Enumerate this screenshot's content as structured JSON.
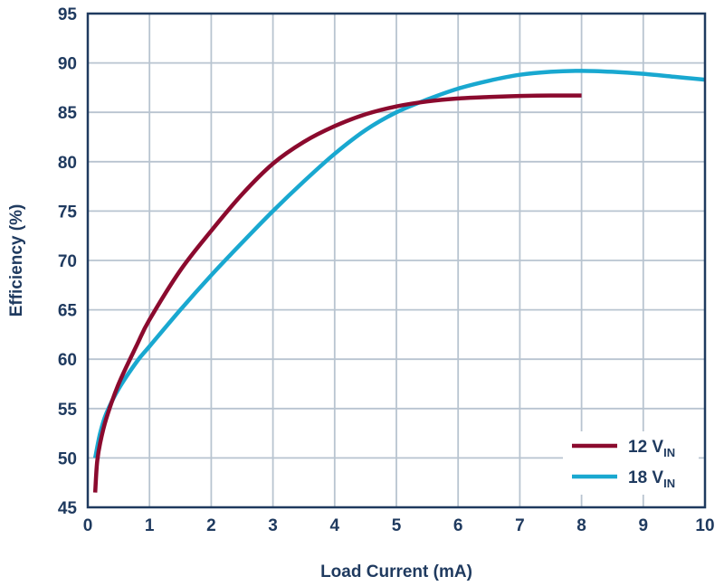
{
  "chart_data": {
    "type": "line",
    "xlabel": "Load Current (mA)",
    "ylabel": "Efficiency (%)",
    "xlim": [
      0,
      10
    ],
    "ylim": [
      45,
      95
    ],
    "x_ticks": [
      0,
      1,
      2,
      3,
      4,
      5,
      6,
      7,
      8,
      9,
      10
    ],
    "y_ticks": [
      45,
      50,
      55,
      60,
      65,
      70,
      75,
      80,
      85,
      90,
      95
    ],
    "grid": true,
    "legend_position": "bottom-right",
    "series": [
      {
        "name": "12 V",
        "name_subscript": "IN",
        "color": "#8b0a2e",
        "x": [
          0.12,
          0.15,
          0.2,
          0.3,
          0.5,
          0.8,
          1.0,
          1.5,
          2.0,
          2.5,
          3.0,
          3.5,
          4.0,
          4.5,
          5.0,
          5.5,
          6.0,
          6.5,
          7.0,
          7.5,
          8.0
        ],
        "y": [
          46.5,
          49.5,
          51.5,
          54.0,
          57.5,
          61.5,
          64.0,
          69.0,
          73.0,
          76.7,
          79.8,
          82.0,
          83.6,
          84.8,
          85.6,
          86.1,
          86.4,
          86.55,
          86.65,
          86.7,
          86.7
        ]
      },
      {
        "name": "18 V",
        "name_subscript": "IN",
        "color": "#19a8d0",
        "x": [
          0.12,
          0.2,
          0.3,
          0.5,
          0.8,
          1.0,
          1.5,
          2.0,
          2.5,
          3.0,
          3.5,
          4.0,
          4.5,
          5.0,
          5.5,
          6.0,
          6.5,
          7.0,
          7.5,
          8.0,
          8.5,
          9.0,
          9.5,
          10.0
        ],
        "y": [
          50.0,
          52.5,
          54.5,
          57.0,
          59.8,
          61.3,
          65.0,
          68.5,
          71.8,
          75.0,
          78.0,
          80.8,
          83.2,
          85.0,
          86.3,
          87.4,
          88.2,
          88.8,
          89.1,
          89.2,
          89.1,
          88.9,
          88.6,
          88.3
        ]
      }
    ]
  }
}
